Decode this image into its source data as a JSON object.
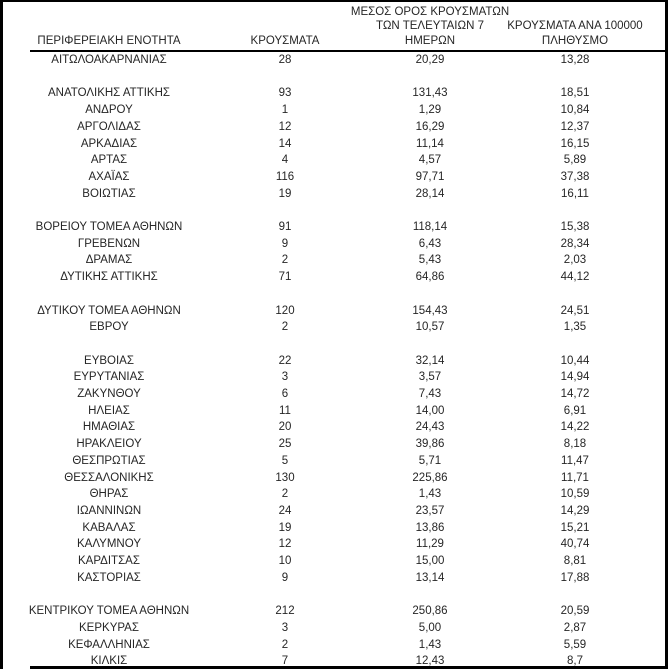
{
  "colors": {
    "background": "#ffffff",
    "text": "#262626",
    "rule": "#000000",
    "frame": "#000000"
  },
  "table": {
    "columns": [
      {
        "id": "regional-unit",
        "label_lines": [
          "ΠΕΡΙΦΕΡΕΙΑΚΗ ΕΝΟΤΗΤΑ"
        ]
      },
      {
        "id": "cases",
        "label_lines": [
          "ΚΡΟΥΣΜΑΤΑ"
        ]
      },
      {
        "id": "avg-7-days",
        "label_lines": [
          "ΜΕΣΟΣ ΟΡΟΣ ΚΡΟΥΣΜΑΤΩΝ",
          "ΤΩΝ ΤΕΛΕΥΤΑΙΩΝ 7",
          "ΗΜΕΡΩΝ"
        ]
      },
      {
        "id": "cases-per-100000",
        "label_lines": [
          "ΚΡΟΥΣΜΑΤΑ ΑΝΑ 100000",
          "ΠΛΗΘΥΣΜΟ"
        ]
      }
    ],
    "groups": [
      {
        "rows": [
          [
            "ΑΙΤΩΛΟΑΚΑΡΝΑΝΙΑΣ",
            "28",
            "20,29",
            "13,28"
          ]
        ]
      },
      {
        "rows": [
          [
            "ΑΝΑΤΟΛΙΚΗΣ ΑΤΤΙΚΗΣ",
            "93",
            "131,43",
            "18,51"
          ],
          [
            "ΑΝΔΡΟΥ",
            "1",
            "1,29",
            "10,84"
          ],
          [
            "ΑΡΓΟΛΙΔΑΣ",
            "12",
            "16,29",
            "12,37"
          ],
          [
            "ΑΡΚΑΔΙΑΣ",
            "14",
            "11,14",
            "16,15"
          ],
          [
            "ΑΡΤΑΣ",
            "4",
            "4,57",
            "5,89"
          ],
          [
            "ΑΧΑΪΑΣ",
            "116",
            "97,71",
            "37,38"
          ],
          [
            "ΒΟΙΩΤΙΑΣ",
            "19",
            "28,14",
            "16,11"
          ]
        ]
      },
      {
        "rows": [
          [
            "ΒΟΡΕΙΟΥ ΤΟΜΕΑ ΑΘΗΝΩΝ",
            "91",
            "118,14",
            "15,38"
          ],
          [
            "ΓΡΕΒΕΝΩΝ",
            "9",
            "6,43",
            "28,34"
          ],
          [
            "ΔΡΑΜΑΣ",
            "2",
            "5,43",
            "2,03"
          ],
          [
            "ΔΥΤΙΚΗΣ ΑΤΤΙΚΗΣ",
            "71",
            "64,86",
            "44,12"
          ]
        ]
      },
      {
        "rows": [
          [
            "ΔΥΤΙΚΟΥ ΤΟΜΕΑ ΑΘΗΝΩΝ",
            "120",
            "154,43",
            "24,51"
          ],
          [
            "ΕΒΡΟΥ",
            "2",
            "10,57",
            "1,35"
          ]
        ]
      },
      {
        "rows": [
          [
            "ΕΥΒΟΙΑΣ",
            "22",
            "32,14",
            "10,44"
          ],
          [
            "ΕΥΡΥΤΑΝΙΑΣ",
            "3",
            "3,57",
            "14,94"
          ],
          [
            "ΖΑΚΥΝΘΟΥ",
            "6",
            "7,43",
            "14,72"
          ],
          [
            "ΗΛΕΙΑΣ",
            "11",
            "14,00",
            "6,91"
          ],
          [
            "ΗΜΑΘΙΑΣ",
            "20",
            "24,43",
            "14,22"
          ],
          [
            "ΗΡΑΚΛΕΙΟΥ",
            "25",
            "39,86",
            "8,18"
          ],
          [
            "ΘΕΣΠΡΩΤΙΑΣ",
            "5",
            "5,71",
            "11,47"
          ],
          [
            "ΘΕΣΣΑΛΟΝΙΚΗΣ",
            "130",
            "225,86",
            "11,71"
          ],
          [
            "ΘΗΡΑΣ",
            "2",
            "1,43",
            "10,59"
          ],
          [
            "ΙΩΑΝΝΙΝΩΝ",
            "24",
            "23,57",
            "14,29"
          ],
          [
            "ΚΑΒΑΛΑΣ",
            "19",
            "13,86",
            "15,21"
          ],
          [
            "ΚΑΛΥΜΝΟΥ",
            "12",
            "11,29",
            "40,74"
          ],
          [
            "ΚΑΡΔΙΤΣΑΣ",
            "10",
            "15,00",
            "8,81"
          ],
          [
            "ΚΑΣΤΟΡΙΑΣ",
            "9",
            "13,14",
            "17,88"
          ]
        ]
      },
      {
        "rows": [
          [
            "ΚΕΝΤΡΙΚΟΥ ΤΟΜΕΑ ΑΘΗΝΩΝ",
            "212",
            "250,86",
            "20,59"
          ],
          [
            "ΚΕΡΚΥΡΑΣ",
            "3",
            "5,00",
            "2,87"
          ],
          [
            "ΚΕΦΑΛΛΗΝΙΑΣ",
            "2",
            "1,43",
            "5,59"
          ],
          [
            "ΚΙΛΚΙΣ",
            "7",
            "12,43",
            "8,7"
          ]
        ]
      }
    ]
  }
}
